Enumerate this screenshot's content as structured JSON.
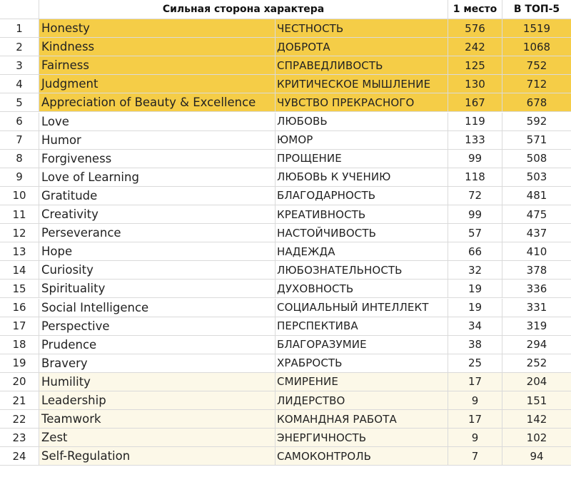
{
  "header": {
    "title": "Сильная сторона характера",
    "col_first_place": "1 место",
    "col_top5": "В ТОП-5"
  },
  "colors": {
    "highlight_top": "#f5cd47",
    "highlight_bottom": "#fcf8e8"
  },
  "rows": [
    {
      "num": "1",
      "en": "Honesty",
      "ru": "ЧЕСТНОСТЬ",
      "first": "576",
      "top5": "1519",
      "group": "gold"
    },
    {
      "num": "2",
      "en": "Kindness",
      "ru": "ДОБРОТА",
      "first": "242",
      "top5": "1068",
      "group": "gold"
    },
    {
      "num": "3",
      "en": "Fairness",
      "ru": "СПРАВЕДЛИВОСТЬ",
      "first": "125",
      "top5": "752",
      "group": "gold"
    },
    {
      "num": "4",
      "en": "Judgment",
      "ru": "КРИТИЧЕСКОЕ МЫШЛЕНИЕ",
      "first": "130",
      "top5": "712",
      "group": "gold"
    },
    {
      "num": "5",
      "en": "Appreciation of Beauty & Excellence",
      "ru": "ЧУВСТВО ПРЕКРАСНОГО",
      "first": "167",
      "top5": "678",
      "group": "gold"
    },
    {
      "num": "6",
      "en": "Love",
      "ru": "ЛЮБОВЬ",
      "first": "119",
      "top5": "592",
      "group": "none"
    },
    {
      "num": "7",
      "en": "Humor",
      "ru": "ЮМОР",
      "first": "133",
      "top5": "571",
      "group": "none"
    },
    {
      "num": "8",
      "en": "Forgiveness",
      "ru": "ПРОЩЕНИЕ",
      "first": "99",
      "top5": "508",
      "group": "none"
    },
    {
      "num": "9",
      "en": "Love of Learning",
      "ru": "ЛЮБОВЬ К УЧЕНИЮ",
      "first": "118",
      "top5": "503",
      "group": "none"
    },
    {
      "num": "10",
      "en": "Gratitude",
      "ru": "БЛАГОДАРНОСТЬ",
      "first": "72",
      "top5": "481",
      "group": "none"
    },
    {
      "num": "11",
      "en": "Creativity",
      "ru": "КРЕАТИВНОСТЬ",
      "first": "99",
      "top5": "475",
      "group": "none"
    },
    {
      "num": "12",
      "en": "Perseverance",
      "ru": "НАСТОЙЧИВОСТЬ",
      "first": "57",
      "top5": "437",
      "group": "none"
    },
    {
      "num": "13",
      "en": "Hope",
      "ru": "НАДЕЖДА",
      "first": "66",
      "top5": "410",
      "group": "none"
    },
    {
      "num": "14",
      "en": "Curiosity",
      "ru": "ЛЮБОЗНАТЕЛЬНОСТЬ",
      "first": "32",
      "top5": "378",
      "group": "none"
    },
    {
      "num": "15",
      "en": "Spirituality",
      "ru": "ДУХОВНОСТЬ",
      "first": "19",
      "top5": "336",
      "group": "none"
    },
    {
      "num": "16",
      "en": "Social Intelligence",
      "ru": "СОЦИАЛЬНЫЙ ИНТЕЛЛЕКТ",
      "first": "19",
      "top5": "331",
      "group": "none"
    },
    {
      "num": "17",
      "en": "Perspective",
      "ru": "ПЕРСПЕКТИВА",
      "first": "34",
      "top5": "319",
      "group": "none"
    },
    {
      "num": "18",
      "en": "Prudence",
      "ru": "БЛАГОРАЗУМИЕ",
      "first": "38",
      "top5": "294",
      "group": "none"
    },
    {
      "num": "19",
      "en": "Bravery",
      "ru": "ХРАБРОСТЬ",
      "first": "25",
      "top5": "252",
      "group": "none"
    },
    {
      "num": "20",
      "en": "Humility",
      "ru": "СМИРЕНИЕ",
      "first": "17",
      "top5": "204",
      "group": "cream"
    },
    {
      "num": "21",
      "en": "Leadership",
      "ru": "ЛИДЕРСТВО",
      "first": "9",
      "top5": "151",
      "group": "cream"
    },
    {
      "num": "22",
      "en": "Teamwork",
      "ru": "КОМАНДНАЯ РАБОТА",
      "first": "17",
      "top5": "142",
      "group": "cream"
    },
    {
      "num": "23",
      "en": "Zest",
      "ru": "ЭНЕРГИЧНОСТЬ",
      "first": "9",
      "top5": "102",
      "group": "cream"
    },
    {
      "num": "24",
      "en": "Self-Regulation",
      "ru": "САМОКОНТРОЛЬ",
      "first": "7",
      "top5": "94",
      "group": "cream"
    }
  ]
}
